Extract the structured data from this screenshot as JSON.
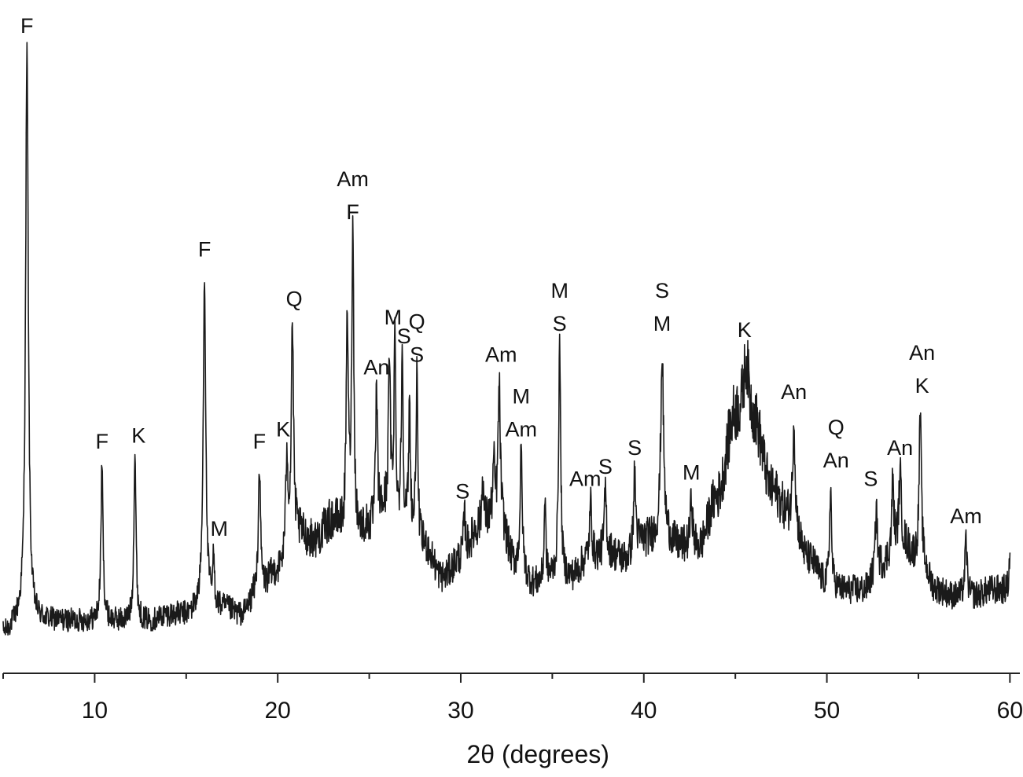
{
  "chart_data": {
    "type": "line",
    "title": "",
    "xlabel": "2θ (degrees)",
    "ylabel": "",
    "xlim": [
      5,
      60.5
    ],
    "ylim": [
      0,
      100
    ],
    "grid": false,
    "legend": "none",
    "colors": {
      "line": "#1a1a1a",
      "axis": "#222222",
      "text": "#111111"
    },
    "x_ticks": [
      {
        "value": 10,
        "label": "10"
      },
      {
        "value": 20,
        "label": "20"
      },
      {
        "value": 30,
        "label": "30"
      },
      {
        "value": 40,
        "label": "40"
      },
      {
        "value": 50,
        "label": "50"
      },
      {
        "value": 60,
        "label": "60"
      }
    ],
    "minor_x_ticks": [
      5,
      15,
      25,
      35,
      45,
      55
    ],
    "baseline": [
      [
        5,
        3
      ],
      [
        6,
        5
      ],
      [
        7,
        5
      ],
      [
        8,
        5
      ],
      [
        9,
        5
      ],
      [
        10,
        5
      ],
      [
        11,
        5
      ],
      [
        12,
        5
      ],
      [
        13,
        5
      ],
      [
        14,
        6
      ],
      [
        15,
        6
      ],
      [
        16,
        8
      ],
      [
        17,
        7
      ],
      [
        18,
        6
      ],
      [
        19,
        10
      ],
      [
        20,
        13
      ],
      [
        21,
        19
      ],
      [
        22,
        18
      ],
      [
        23,
        21
      ],
      [
        24,
        18
      ],
      [
        25,
        20
      ],
      [
        26,
        23
      ],
      [
        27,
        19
      ],
      [
        28,
        17
      ],
      [
        29,
        12
      ],
      [
        30,
        15
      ],
      [
        31,
        20
      ],
      [
        32,
        22
      ],
      [
        33,
        14
      ],
      [
        34,
        11
      ],
      [
        35,
        12
      ],
      [
        36,
        12
      ],
      [
        37,
        15
      ],
      [
        38,
        16
      ],
      [
        39,
        15
      ],
      [
        40,
        18
      ],
      [
        41,
        19
      ],
      [
        42,
        17
      ],
      [
        43,
        17
      ],
      [
        44,
        25
      ],
      [
        45,
        38
      ],
      [
        46,
        37
      ],
      [
        47,
        26
      ],
      [
        48,
        22
      ],
      [
        49,
        15
      ],
      [
        50,
        11
      ],
      [
        51,
        10
      ],
      [
        52,
        10
      ],
      [
        53,
        14
      ],
      [
        54,
        18
      ],
      [
        55,
        15
      ],
      [
        56,
        10
      ],
      [
        57,
        9
      ],
      [
        58,
        9
      ],
      [
        59,
        10
      ],
      [
        60,
        10
      ]
    ],
    "peaks": [
      {
        "x": 6.3,
        "y": 97,
        "w": 0.09
      },
      {
        "x": 10.4,
        "y": 30,
        "w": 0.07
      },
      {
        "x": 12.2,
        "y": 32,
        "w": 0.07
      },
      {
        "x": 16.0,
        "y": 61,
        "w": 0.08
      },
      {
        "x": 16.5,
        "y": 15,
        "w": 0.05
      },
      {
        "x": 19.0,
        "y": 30,
        "w": 0.07
      },
      {
        "x": 20.5,
        "y": 32,
        "w": 0.07
      },
      {
        "x": 20.8,
        "y": 53,
        "w": 0.07
      },
      {
        "x": 23.8,
        "y": 53,
        "w": 0.07
      },
      {
        "x": 24.1,
        "y": 67,
        "w": 0.07
      },
      {
        "x": 25.4,
        "y": 42,
        "w": 0.06
      },
      {
        "x": 26.1,
        "y": 47,
        "w": 0.06
      },
      {
        "x": 26.4,
        "y": 50,
        "w": 0.06
      },
      {
        "x": 26.8,
        "y": 48,
        "w": 0.06
      },
      {
        "x": 27.2,
        "y": 39,
        "w": 0.06
      },
      {
        "x": 27.6,
        "y": 44,
        "w": 0.06
      },
      {
        "x": 30.2,
        "y": 22,
        "w": 0.07
      },
      {
        "x": 31.2,
        "y": 28,
        "w": 0.06
      },
      {
        "x": 31.8,
        "y": 30,
        "w": 0.06
      },
      {
        "x": 32.1,
        "y": 43,
        "w": 0.07
      },
      {
        "x": 33.3,
        "y": 32,
        "w": 0.07
      },
      {
        "x": 34.6,
        "y": 25,
        "w": 0.05
      },
      {
        "x": 35.4,
        "y": 49,
        "w": 0.07
      },
      {
        "x": 37.1,
        "y": 24,
        "w": 0.07
      },
      {
        "x": 37.9,
        "y": 26,
        "w": 0.07
      },
      {
        "x": 39.5,
        "y": 29,
        "w": 0.07
      },
      {
        "x": 41.0,
        "y": 48,
        "w": 0.09
      },
      {
        "x": 42.6,
        "y": 25,
        "w": 0.07
      },
      {
        "x": 45.6,
        "y": 47,
        "w": 0.18
      },
      {
        "x": 48.2,
        "y": 38,
        "w": 0.07
      },
      {
        "x": 50.2,
        "y": 27,
        "w": 0.06
      },
      {
        "x": 52.7,
        "y": 24,
        "w": 0.06
      },
      {
        "x": 53.6,
        "y": 28,
        "w": 0.06
      },
      {
        "x": 54.0,
        "y": 29,
        "w": 0.07
      },
      {
        "x": 55.1,
        "y": 39,
        "w": 0.07
      },
      {
        "x": 57.6,
        "y": 18,
        "w": 0.07
      },
      {
        "x": 60.0,
        "y": 16,
        "w": 0.05
      }
    ],
    "noise_amplitude": 2.4,
    "annotations": [
      {
        "x": 6.3,
        "y": 99,
        "lines": [
          "F"
        ]
      },
      {
        "x": 10.4,
        "y": 32,
        "lines": [
          "F"
        ]
      },
      {
        "x": 12.4,
        "y": 33,
        "lines": [
          "K"
        ]
      },
      {
        "x": 16.0,
        "y": 63,
        "lines": [
          "F"
        ]
      },
      {
        "x": 16.8,
        "y": 18,
        "lines": [
          "M"
        ]
      },
      {
        "x": 19.0,
        "y": 32,
        "lines": [
          "F"
        ]
      },
      {
        "x": 20.3,
        "y": 34,
        "lines": [
          "K"
        ]
      },
      {
        "x": 20.9,
        "y": 55,
        "lines": [
          "Q"
        ]
      },
      {
        "x": 24.1,
        "y": 69,
        "lines": [
          "Am",
          "F"
        ]
      },
      {
        "x": 25.4,
        "y": 44,
        "lines": [
          "An"
        ]
      },
      {
        "x": 26.3,
        "y": 52,
        "lines": [
          "M"
        ]
      },
      {
        "x": 26.9,
        "y": 49,
        "lines": [
          "S"
        ]
      },
      {
        "x": 27.6,
        "y": 46,
        "lines": [
          "Q",
          "S"
        ]
      },
      {
        "x": 30.1,
        "y": 24,
        "lines": [
          "S"
        ]
      },
      {
        "x": 32.2,
        "y": 46,
        "lines": [
          "Am"
        ]
      },
      {
        "x": 33.3,
        "y": 34,
        "lines": [
          "M",
          "Am"
        ]
      },
      {
        "x": 35.4,
        "y": 51,
        "lines": [
          "M",
          "S"
        ]
      },
      {
        "x": 36.8,
        "y": 26,
        "lines": [
          "Am"
        ]
      },
      {
        "x": 37.9,
        "y": 28,
        "lines": [
          "S"
        ]
      },
      {
        "x": 39.5,
        "y": 31,
        "lines": [
          "S"
        ]
      },
      {
        "x": 41.0,
        "y": 51,
        "lines": [
          "S",
          "M"
        ]
      },
      {
        "x": 42.6,
        "y": 27,
        "lines": [
          "M"
        ]
      },
      {
        "x": 45.5,
        "y": 50,
        "lines": [
          "K"
        ]
      },
      {
        "x": 48.2,
        "y": 40,
        "lines": [
          "An"
        ]
      },
      {
        "x": 50.5,
        "y": 29,
        "lines": [
          "Q",
          "An"
        ]
      },
      {
        "x": 52.4,
        "y": 26,
        "lines": [
          "S"
        ]
      },
      {
        "x": 54.0,
        "y": 31,
        "lines": [
          "An"
        ]
      },
      {
        "x": 55.2,
        "y": 41,
        "lines": [
          "An",
          "K"
        ]
      },
      {
        "x": 57.6,
        "y": 20,
        "lines": [
          "Am"
        ]
      }
    ]
  }
}
